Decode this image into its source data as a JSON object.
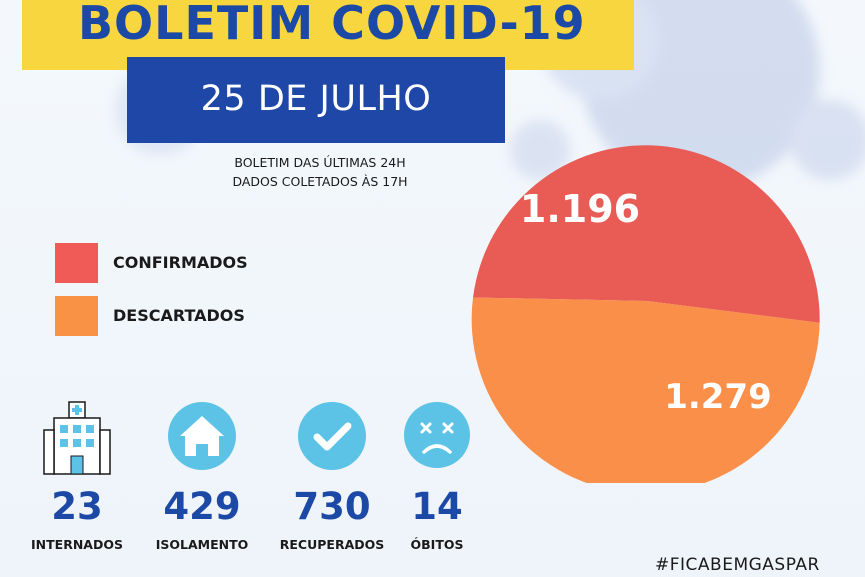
{
  "header": {
    "title": "BOLETIM COVID-19",
    "date": "25 DE JULHO",
    "subtitle_line1": "BOLETIM DAS ÚLTIMAS 24H",
    "subtitle_line2": "DADOS COLETADOS ÀS  17H"
  },
  "legend": [
    {
      "label": "CONFIRMADOS",
      "color": "#f05a57"
    },
    {
      "label": "DESCARTADOS",
      "color": "#f99245"
    }
  ],
  "stats": [
    {
      "value": "23",
      "label": "INTERNADOS",
      "icon": "hospital-icon"
    },
    {
      "value": "429",
      "label": "ISOLAMENTO",
      "icon": "house-icon"
    },
    {
      "value": "730",
      "label": "RECUPERADOS",
      "icon": "checkmark-icon"
    },
    {
      "value": "14",
      "label": "ÓBITOS",
      "icon": "sad-face-icon"
    }
  ],
  "footer": {
    "hashtag": "#FICABEMGASPAR"
  },
  "colors": {
    "title_band": "#f8d63f",
    "brand_blue": "#1d49a6",
    "icon_blue": "#5cc3e6"
  },
  "chart_data": {
    "type": "pie",
    "categories": [
      "CONFIRMADOS",
      "DESCARTADOS"
    ],
    "values": [
      1196,
      1279
    ],
    "value_labels": [
      "1.196",
      "1.279"
    ],
    "colors": [
      "#e85c55",
      "#f98f48"
    ]
  }
}
